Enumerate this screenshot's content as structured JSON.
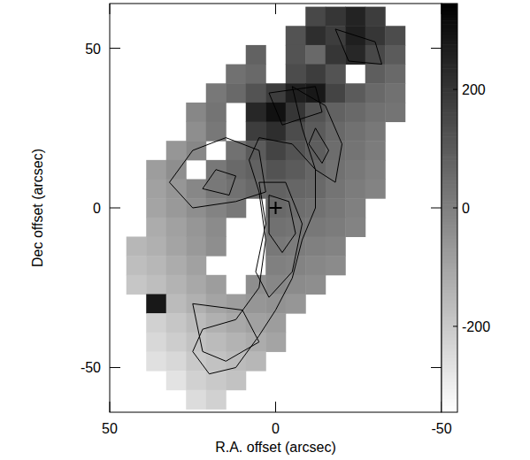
{
  "chart_data": {
    "type": "heatmap",
    "x_label": "R.A. offset (arcsec)",
    "y_label": "Dec offset (arcsec)",
    "xlim": [
      50,
      -50
    ],
    "ylim": [
      -64,
      64
    ],
    "xticks": [
      50,
      0,
      -50
    ],
    "yticks": [
      -50,
      0,
      50
    ],
    "colorbar": {
      "range": [
        -345,
        345
      ],
      "ticks": [
        -200,
        0,
        200
      ]
    },
    "center": {
      "x": 0,
      "y": 0
    },
    "cells": {
      "x": [
        42,
        36,
        30,
        24,
        18,
        12,
        6,
        0,
        -6,
        -12,
        -18,
        -24,
        -30,
        -36,
        -42
      ],
      "y": [
        60,
        54,
        48,
        42,
        36,
        30,
        24,
        18,
        12,
        6,
        0,
        -6,
        -12,
        -18,
        -24,
        -30,
        -36,
        -42,
        -48,
        -54,
        -60
      ],
      "values": [
        [
          null,
          null,
          null,
          null,
          null,
          null,
          null,
          null,
          null,
          150,
          200,
          250,
          180,
          null,
          null
        ],
        [
          null,
          null,
          null,
          null,
          null,
          null,
          null,
          null,
          120,
          220,
          180,
          260,
          200,
          140,
          null
        ],
        [
          null,
          null,
          null,
          null,
          null,
          null,
          80,
          null,
          120,
          60,
          200,
          240,
          150,
          100,
          null
        ],
        [
          null,
          null,
          null,
          null,
          null,
          40,
          60,
          null,
          140,
          180,
          120,
          null,
          90,
          60,
          null
        ],
        [
          null,
          null,
          null,
          null,
          20,
          60,
          120,
          180,
          260,
          280,
          160,
          100,
          60,
          40,
          null
        ],
        [
          null,
          null,
          null,
          -20,
          30,
          null,
          240,
          300,
          200,
          120,
          80,
          60,
          40,
          30,
          null
        ],
        [
          null,
          null,
          null,
          -40,
          20,
          null,
          180,
          220,
          140,
          100,
          60,
          40,
          20,
          null,
          null
        ],
        [
          null,
          null,
          -60,
          -20,
          null,
          40,
          100,
          160,
          120,
          90,
          50,
          30,
          10,
          null,
          null
        ],
        [
          null,
          -80,
          -40,
          null,
          20,
          60,
          80,
          120,
          100,
          70,
          40,
          20,
          0,
          null,
          null
        ],
        [
          null,
          -90,
          -60,
          -20,
          20,
          40,
          60,
          80,
          70,
          60,
          30,
          10,
          -10,
          null,
          null
        ],
        [
          null,
          -100,
          -70,
          -40,
          -10,
          20,
          null,
          60,
          50,
          40,
          20,
          0,
          null,
          null,
          null
        ],
        [
          null,
          -120,
          -90,
          -60,
          -30,
          null,
          null,
          40,
          30,
          20,
          10,
          -10,
          null,
          null,
          null
        ],
        [
          -150,
          -130,
          -100,
          -70,
          -40,
          null,
          null,
          20,
          10,
          0,
          -10,
          null,
          null,
          null,
          null
        ],
        [
          -170,
          -150,
          -120,
          -90,
          null,
          null,
          null,
          0,
          -10,
          -20,
          -30,
          null,
          null,
          null,
          null
        ],
        [
          -190,
          -170,
          -140,
          -110,
          -80,
          null,
          -40,
          -20,
          -30,
          -40,
          null,
          null,
          null,
          null,
          null
        ],
        [
          null,
          280,
          -160,
          -130,
          -100,
          -80,
          -60,
          -50,
          -60,
          null,
          null,
          null,
          null,
          null,
          null
        ],
        [
          null,
          -220,
          -190,
          -160,
          -130,
          -110,
          -90,
          -80,
          null,
          null,
          null,
          null,
          null,
          null,
          null
        ],
        [
          null,
          -240,
          -210,
          -180,
          -160,
          -140,
          -120,
          -100,
          null,
          null,
          null,
          null,
          null,
          null,
          null
        ],
        [
          null,
          -260,
          -240,
          -200,
          -180,
          -160,
          -150,
          null,
          null,
          null,
          null,
          null,
          null,
          null,
          null
        ],
        [
          null,
          null,
          -270,
          -220,
          -200,
          -180,
          null,
          null,
          null,
          null,
          null,
          null,
          null,
          null,
          null
        ],
        [
          null,
          null,
          null,
          -250,
          -220,
          null,
          null,
          null,
          null,
          null,
          null,
          null,
          null,
          null,
          null
        ]
      ]
    },
    "contours": [
      {
        "ra": [
          5,
          -5,
          -12,
          -12,
          -8,
          -5,
          0,
          5,
          12,
          20,
          25,
          22,
          12,
          5,
          3,
          5,
          8
        ],
        "dec": [
          22,
          20,
          12,
          0,
          -10,
          -22,
          -32,
          -40,
          -50,
          -52,
          -45,
          -38,
          -35,
          -25,
          -10,
          5,
          15
        ]
      },
      {
        "ra": [
          5,
          -3,
          -8,
          -5,
          2,
          6,
          3
        ],
        "dec": [
          8,
          8,
          -5,
          -20,
          -28,
          -20,
          -5
        ]
      },
      {
        "ra": [
          2,
          -4,
          -6,
          -2,
          2
        ],
        "dec": [
          4,
          2,
          -8,
          -14,
          -8
        ]
      },
      {
        "ra": [
          32,
          25,
          15,
          5,
          3,
          12,
          25
        ],
        "dec": [
          8,
          18,
          22,
          18,
          5,
          2,
          0
        ]
      },
      {
        "ra": [
          22,
          18,
          12,
          14
        ],
        "dec": [
          6,
          12,
          10,
          4
        ]
      },
      {
        "ra": [
          -5,
          -15,
          -20,
          -18,
          -12,
          -8
        ],
        "dec": [
          38,
          32,
          20,
          8,
          12,
          25
        ]
      },
      {
        "ra": [
          -12,
          -16,
          -14,
          -10
        ],
        "dec": [
          25,
          18,
          14,
          20
        ]
      },
      {
        "ra": [
          2,
          -12,
          -14,
          -2
        ],
        "dec": [
          36,
          38,
          30,
          26
        ]
      },
      {
        "ra": [
          -18,
          -30,
          -32,
          -22
        ],
        "dec": [
          56,
          52,
          45,
          46
        ]
      },
      {
        "ra": [
          25,
          10,
          5,
          15,
          22
        ],
        "dec": [
          -30,
          -32,
          -42,
          -48,
          -45
        ]
      }
    ]
  }
}
